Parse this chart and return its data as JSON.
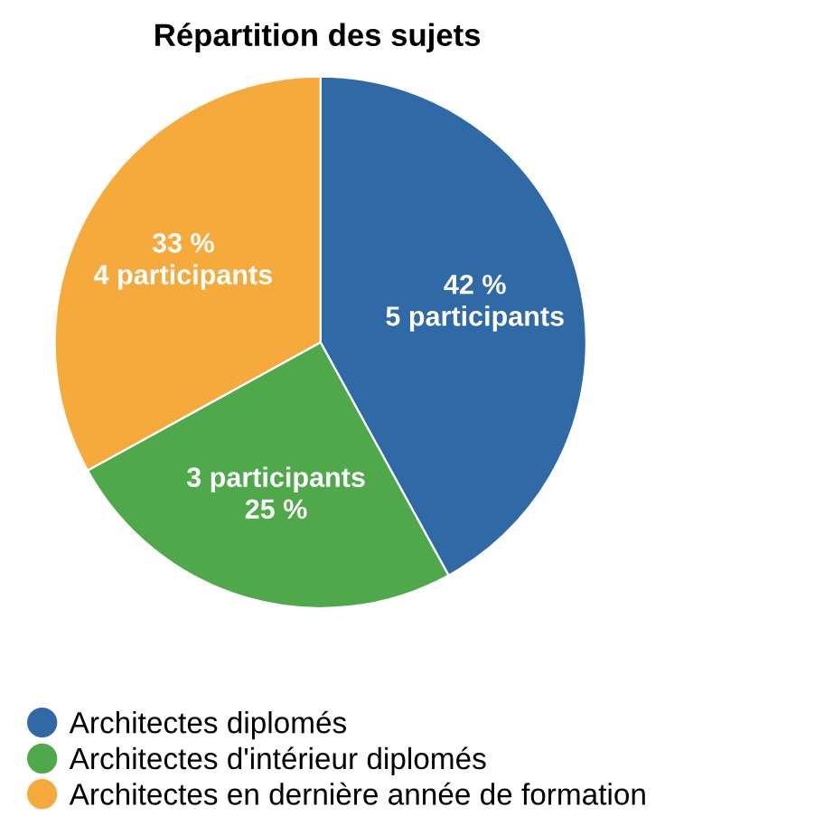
{
  "chart_data": {
    "type": "pie",
    "title": "Répartition des sujets",
    "categories": [
      "Architectes diplomés",
      "Architectes d'intérieur diplomés",
      "Architectes en dernière année de formation"
    ],
    "values": [
      42,
      25,
      33
    ],
    "colors": [
      "#2f6aa6",
      "#4fa94b",
      "#f5aa3b"
    ],
    "value_labels": [
      "42 %\n5 participants",
      "3 participants\n25 %",
      "33 %\n4 participants"
    ],
    "legend": "bottom"
  }
}
